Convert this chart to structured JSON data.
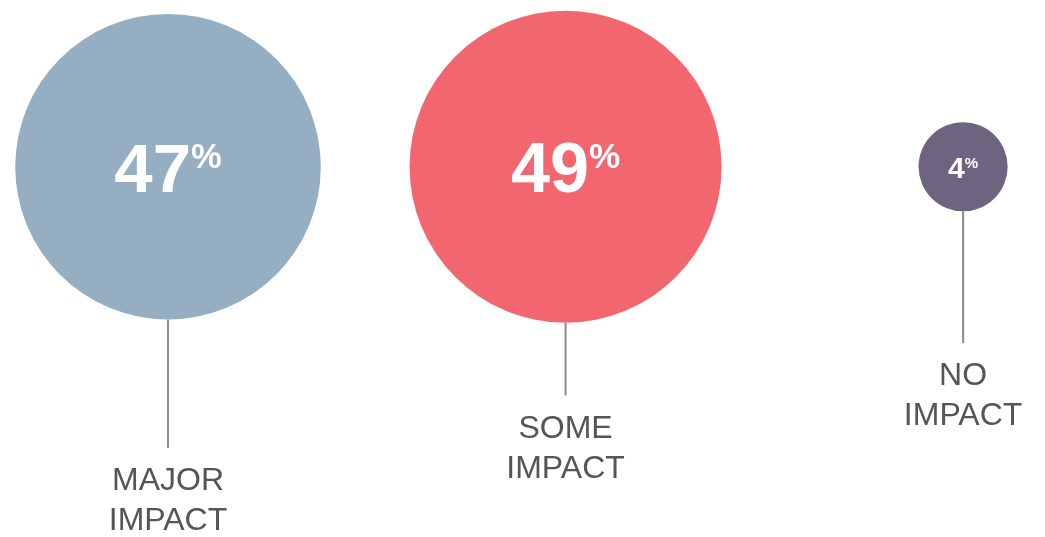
{
  "chart_data": {
    "type": "other",
    "categories": [
      "MAJOR IMPACT",
      "SOME IMPACT",
      "NO IMPACT"
    ],
    "values": [
      47,
      49,
      4
    ],
    "value_labels": [
      "47$^{%}$",
      "49$^{%}$",
      "4$^{%}$"
    ],
    "colors": [
      "#95aec1",
      "#f2676f",
      "#6e6480"
    ]
  }
}
